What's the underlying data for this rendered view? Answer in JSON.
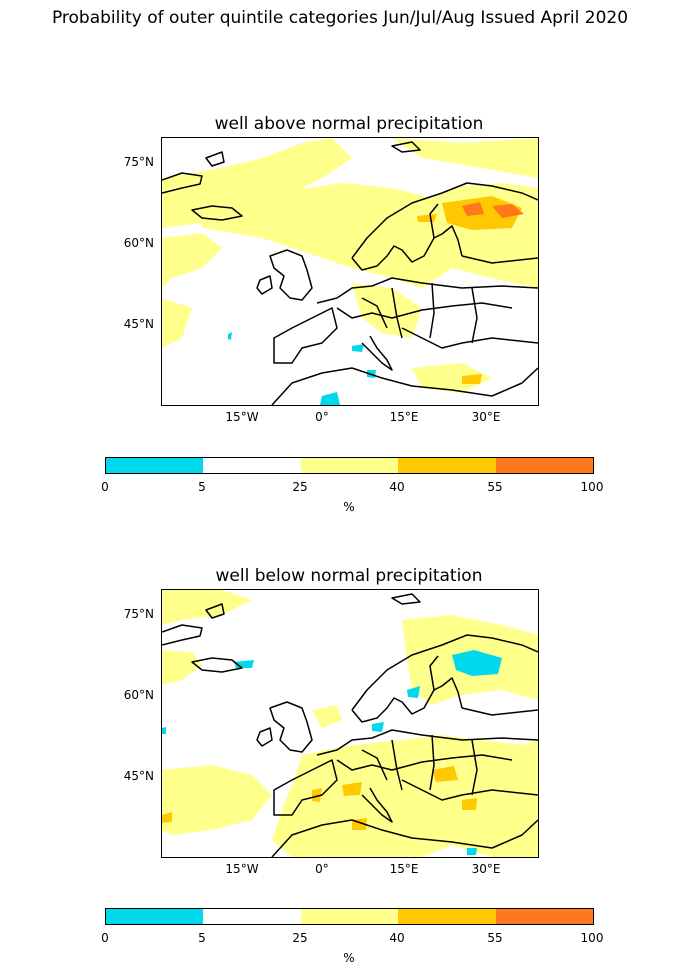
{
  "title": "Probability of outer quintile categories Jun/Jul/Aug Issued April 2020",
  "panels": [
    {
      "title": "well above normal precipitation",
      "lat_labels": [
        "75°N",
        "60°N",
        "45°N"
      ],
      "lon_labels": [
        "15°W",
        "0°",
        "15°E",
        "30°E"
      ]
    },
    {
      "title": "well below normal precipitation",
      "lat_labels": [
        "75°N",
        "60°N",
        "45°N"
      ],
      "lon_labels": [
        "15°W",
        "0°",
        "15°E",
        "30°E"
      ]
    }
  ],
  "colorbar": {
    "ticks": [
      "0",
      "5",
      "25",
      "40",
      "55",
      "100"
    ],
    "unit": "%",
    "colors": [
      "#00d8ec",
      "#ffffff",
      "#ffff8c",
      "#ffc800",
      "#ff781e"
    ]
  }
}
